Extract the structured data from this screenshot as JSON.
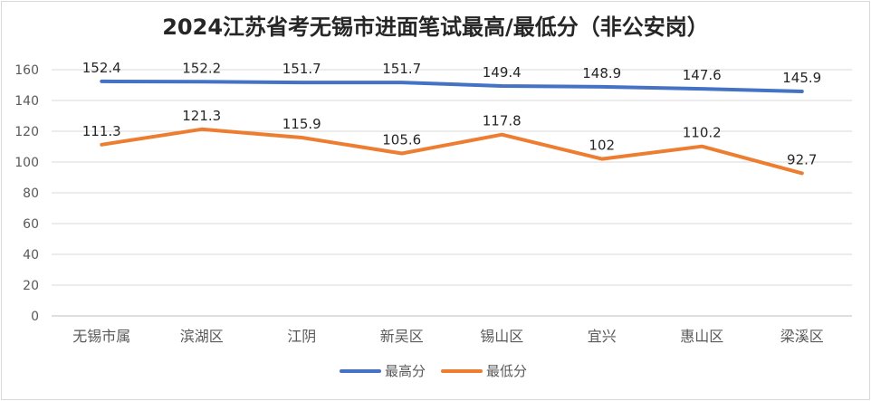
{
  "chart_data": {
    "type": "line",
    "title": "2024江苏省考无锡市进面笔试最高/最低分（非公安岗）",
    "categories": [
      "无锡市属",
      "滨湖区",
      "江阴",
      "新吴区",
      "锡山区",
      "宜兴",
      "惠山区",
      "梁溪区"
    ],
    "series": [
      {
        "name": "最高分",
        "color": "#4472C4",
        "values": [
          152.4,
          152.2,
          151.7,
          151.7,
          149.4,
          148.9,
          147.6,
          145.9
        ]
      },
      {
        "name": "最低分",
        "color": "#ED7D31",
        "values": [
          111.3,
          121.3,
          115.9,
          105.6,
          117.8,
          102,
          110.2,
          92.7
        ]
      }
    ],
    "ylim": [
      0,
      160
    ],
    "yticks": [
      0,
      20,
      40,
      60,
      80,
      100,
      120,
      140,
      160
    ],
    "grid": true,
    "legend": "bottom",
    "data_labels": true
  }
}
